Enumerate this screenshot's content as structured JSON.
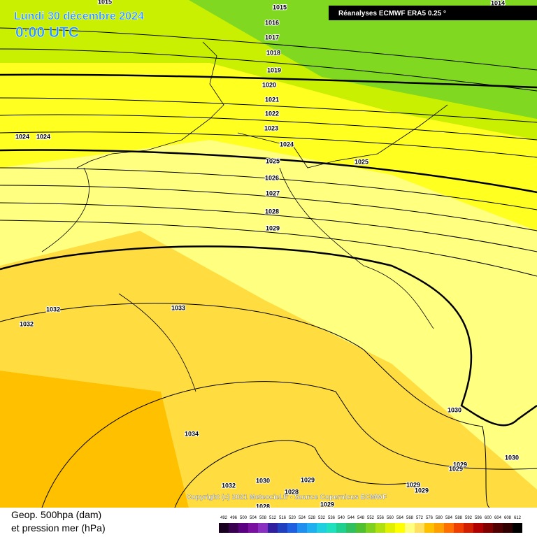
{
  "header": {
    "date": "Lundi 30 décembre 2024",
    "time": "0:00 UTC",
    "source": "Réanalyses ECMWF ERA5 0.25 °"
  },
  "copyright": "Copyright (c) 2021 Meteociel.fr - Source Copernicus ECMWF",
  "legend": {
    "line1": "Geop. 500hpa (dam)",
    "line2": "et pression mer (hPa)",
    "scale": [
      492,
      496,
      500,
      504,
      508,
      512,
      516,
      520,
      524,
      528,
      532,
      536,
      540,
      544,
      548,
      552,
      556,
      560,
      564,
      568,
      572,
      576,
      580,
      584,
      588,
      592,
      596,
      600,
      604,
      608,
      612
    ],
    "colors": [
      "#1a0020",
      "#3a0050",
      "#5a0080",
      "#7a10a0",
      "#8a30c0",
      "#3020a0",
      "#2040c0",
      "#2060e0",
      "#2090f0",
      "#20b0f0",
      "#20d0e0",
      "#20e0c0",
      "#20d090",
      "#30c060",
      "#50c030",
      "#80d020",
      "#b0e010",
      "#e0f000",
      "#ffff00",
      "#ffff80",
      "#ffe060",
      "#ffc000",
      "#ffa000",
      "#ff7000",
      "#f04000",
      "#d02000",
      "#b00000",
      "#800000",
      "#500000",
      "#300000",
      "#000000"
    ]
  },
  "isobar_labels": [
    1015,
    1015,
    1014,
    1016,
    1017,
    1018,
    1019,
    1020,
    1021,
    1022,
    1023,
    1024,
    1024,
    1024,
    1025,
    1025,
    1026,
    1027,
    1028,
    1029,
    1032,
    1033,
    1032,
    1030,
    1034,
    1029,
    1029,
    1030,
    1032,
    1030,
    1029,
    1028,
    1029,
    1029,
    1028,
    1029
  ]
}
